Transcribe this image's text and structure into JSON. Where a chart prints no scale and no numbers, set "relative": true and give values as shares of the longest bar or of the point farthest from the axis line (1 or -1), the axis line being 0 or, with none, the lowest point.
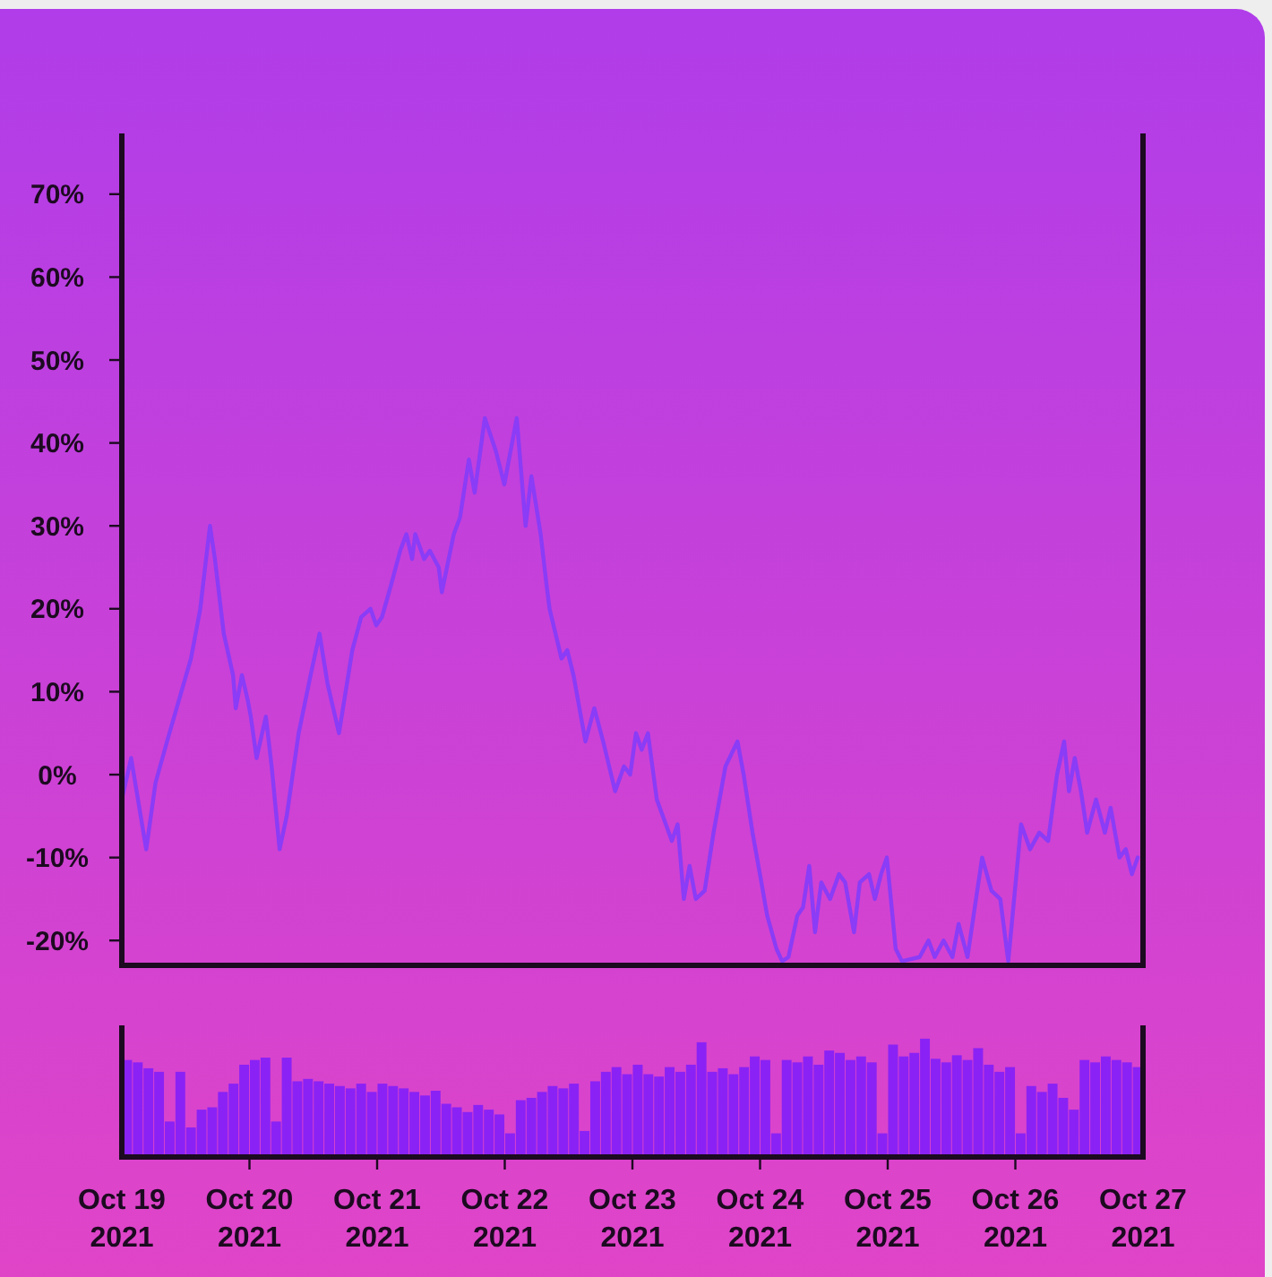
{
  "chart_data": [
    {
      "type": "line",
      "color": "#8a3cf6",
      "x": [
        "2021-10-19T00:00",
        "2021-10-19T01:45",
        "2021-10-19T04:35",
        "2021-10-19T06:20",
        "2021-10-19T08:30",
        "2021-10-19T10:45",
        "2021-10-19T13:00",
        "2021-10-19T14:45",
        "2021-10-19T15:50",
        "2021-10-19T16:35",
        "2021-10-19T17:30",
        "2021-10-19T19:10",
        "2021-10-19T20:55",
        "2021-10-19T21:25",
        "2021-10-19T22:35",
        "2021-10-19T23:40",
        "2021-10-20T00:15",
        "2021-10-20T01:20",
        "2021-10-20T03:05",
        "2021-10-20T04:10",
        "2021-10-20T05:40",
        "2021-10-20T07:00",
        "2021-10-20T09:15",
        "2021-10-20T11:30",
        "2021-10-20T13:10",
        "2021-10-20T14:40",
        "2021-10-20T16:50",
        "2021-10-20T19:20",
        "2021-10-20T21:00",
        "2021-10-20T22:45",
        "2021-10-20T23:50",
        "2021-10-21T00:55",
        "2021-10-21T02:40",
        "2021-10-21T04:20",
        "2021-10-21T05:30",
        "2021-10-21T06:35",
        "2021-10-21T07:10",
        "2021-10-21T08:50",
        "2021-10-21T09:55",
        "2021-10-21T11:35",
        "2021-10-21T12:10",
        "2021-10-21T14:25",
        "2021-10-21T15:35",
        "2021-10-21T17:15",
        "2021-10-21T18:20",
        "2021-10-21T20:15",
        "2021-10-21T22:20",
        "2021-10-21T23:55",
        "2021-10-22T02:15",
        "2021-10-22T03:55",
        "2021-10-22T05:00",
        "2021-10-22T06:45",
        "2021-10-22T07:50",
        "2021-10-22T08:25",
        "2021-10-22T10:40",
        "2021-10-22T11:45",
        "2021-10-22T12:55",
        "2021-10-22T15:10",
        "2021-10-22T16:50",
        "2021-10-22T18:30",
        "2021-10-22T20:45",
        "2021-10-22T22:25",
        "2021-10-22T23:35",
        "2021-10-23T00:40",
        "2021-10-23T01:45",
        "2021-10-23T02:55",
        "2021-10-23T04:35",
        "2021-10-23T07:25",
        "2021-10-23T08:30",
        "2021-10-23T09:40",
        "2021-10-23T10:45",
        "2021-10-23T11:55",
        "2021-10-23T13:35",
        "2021-10-23T15:15",
        "2021-10-23T17:30",
        "2021-10-23T19:45",
        "2021-10-23T20:55",
        "2021-10-23T22:35",
        "2021-10-24T00:15",
        "2021-10-24T01:20",
        "2021-10-24T03:05",
        "2021-10-24T04:10",
        "2021-10-24T05:20",
        "2021-10-24T07:00",
        "2021-10-24T08:05",
        "2021-10-24T09:15",
        "2021-10-24T10:20",
        "2021-10-24T11:30",
        "2021-10-24T13:10",
        "2021-10-24T14:50",
        "2021-10-24T16:00",
        "2021-10-24T17:40",
        "2021-10-24T18:45",
        "2021-10-24T20:30",
        "2021-10-24T21:35",
        "2021-10-24T22:45",
        "2021-10-24T23:50",
        "2021-10-25T01:30",
        "2021-10-25T02:40",
        "2021-10-25T06:00",
        "2021-10-25T07:40",
        "2021-10-25T08:50",
        "2021-10-25T10:30",
        "2021-10-25T12:10",
        "2021-10-25T13:20",
        "2021-10-25T15:00",
        "2021-10-25T17:45",
        "2021-10-25T19:30",
        "2021-10-25T21:10",
        "2021-10-25T22:40",
        "2021-10-26T01:05",
        "2021-10-26T02:45",
        "2021-10-26T04:30",
        "2021-10-26T06:10",
        "2021-10-26T07:50",
        "2021-10-26T09:10",
        "2021-10-26T10:05",
        "2021-10-26T11:10",
        "2021-10-26T12:20",
        "2021-10-26T13:30",
        "2021-10-26T15:10",
        "2021-10-26T16:50",
        "2021-10-26T17:55",
        "2021-10-26T19:35",
        "2021-10-26T20:45",
        "2021-10-26T21:55",
        "2021-10-26T23:00"
      ],
      "values": [
        -3,
        2,
        -9,
        -1,
        4,
        9,
        14,
        20,
        26,
        30,
        26,
        17,
        12,
        8,
        12,
        9,
        7,
        2,
        7,
        1,
        -9,
        -5,
        5,
        12,
        17,
        11,
        5,
        15,
        19,
        20,
        18,
        19,
        23,
        27,
        29,
        26,
        29,
        26,
        27,
        25,
        22,
        29,
        31,
        38,
        34,
        43,
        39,
        35,
        43,
        30,
        36,
        29,
        23,
        20,
        14,
        15,
        12,
        4,
        8,
        4,
        -2,
        1,
        0,
        5,
        3,
        5,
        -3,
        -8,
        -6,
        -15,
        -11,
        -15,
        -14,
        -7,
        1,
        4,
        0,
        -7,
        -13,
        -17,
        -21,
        -22.5,
        -22,
        -17,
        -16,
        -11,
        -19,
        -13,
        -15,
        -12,
        -13,
        -19,
        -13,
        -12,
        -15,
        -12,
        -10,
        -21,
        -22.5,
        -22,
        -20,
        -22,
        -20,
        -22,
        -18,
        -22,
        -10,
        -14,
        -15,
        -22.5,
        -6,
        -9,
        -7,
        -8,
        0,
        4,
        -2,
        2,
        -2,
        -7,
        -3,
        -7,
        -4,
        -10,
        -9,
        -12,
        -10
      ],
      "xlim": [
        "2021-10-19",
        "2021-10-27"
      ],
      "ylim": [
        -23,
        77
      ],
      "yticks": [
        {
          "value": -20,
          "label": "-20%"
        },
        {
          "value": -10,
          "label": "-10%"
        },
        {
          "value": 0,
          "label": "0%"
        },
        {
          "value": 10,
          "label": "10%"
        },
        {
          "value": 20,
          "label": "20%"
        },
        {
          "value": 30,
          "label": "30%"
        },
        {
          "value": 40,
          "label": "40%"
        },
        {
          "value": 50,
          "label": "50%"
        },
        {
          "value": 60,
          "label": "60%"
        },
        {
          "value": 70,
          "label": "70%"
        }
      ],
      "tick_labels": "y"
    },
    {
      "type": "bar",
      "relative": true,
      "color": "#8a22f5",
      "x": [
        "2021-10-19T01:00",
        "2021-10-19T03:00",
        "2021-10-19T05:00",
        "2021-10-19T07:00",
        "2021-10-19T09:00",
        "2021-10-19T11:00",
        "2021-10-19T13:00",
        "2021-10-19T15:00",
        "2021-10-19T17:00",
        "2021-10-19T19:00",
        "2021-10-19T21:00",
        "2021-10-19T23:00",
        "2021-10-20T01:00",
        "2021-10-20T03:00",
        "2021-10-20T05:00",
        "2021-10-20T07:00",
        "2021-10-20T09:00",
        "2021-10-20T11:00",
        "2021-10-20T13:00",
        "2021-10-20T15:00",
        "2021-10-20T17:00",
        "2021-10-20T19:00",
        "2021-10-20T21:00",
        "2021-10-20T23:00",
        "2021-10-21T01:00",
        "2021-10-21T03:00",
        "2021-10-21T05:00",
        "2021-10-21T07:00",
        "2021-10-21T09:00",
        "2021-10-21T11:00",
        "2021-10-21T13:00",
        "2021-10-21T15:00",
        "2021-10-21T17:00",
        "2021-10-21T19:00",
        "2021-10-21T21:00",
        "2021-10-21T23:00",
        "2021-10-22T01:00",
        "2021-10-22T03:00",
        "2021-10-22T05:00",
        "2021-10-22T07:00",
        "2021-10-22T09:00",
        "2021-10-22T11:00",
        "2021-10-22T13:00",
        "2021-10-22T15:00",
        "2021-10-22T17:00",
        "2021-10-22T19:00",
        "2021-10-22T21:00",
        "2021-10-22T23:00",
        "2021-10-23T01:00",
        "2021-10-23T03:00",
        "2021-10-23T05:00",
        "2021-10-23T07:00",
        "2021-10-23T09:00",
        "2021-10-23T11:00",
        "2021-10-23T13:00",
        "2021-10-23T15:00",
        "2021-10-23T17:00",
        "2021-10-23T19:00",
        "2021-10-23T21:00",
        "2021-10-23T23:00",
        "2021-10-24T01:00",
        "2021-10-24T03:00",
        "2021-10-24T05:00",
        "2021-10-24T07:00",
        "2021-10-24T09:00",
        "2021-10-24T11:00",
        "2021-10-24T13:00",
        "2021-10-24T15:00",
        "2021-10-24T17:00",
        "2021-10-24T19:00",
        "2021-10-24T21:00",
        "2021-10-24T23:00",
        "2021-10-25T01:00",
        "2021-10-25T03:00",
        "2021-10-25T05:00",
        "2021-10-25T07:00",
        "2021-10-25T09:00",
        "2021-10-25T11:00",
        "2021-10-25T13:00",
        "2021-10-25T15:00",
        "2021-10-25T17:00",
        "2021-10-25T19:00",
        "2021-10-25T21:00",
        "2021-10-25T23:00",
        "2021-10-26T01:00",
        "2021-10-26T03:00",
        "2021-10-26T05:00",
        "2021-10-26T07:00",
        "2021-10-26T09:00",
        "2021-10-26T11:00",
        "2021-10-26T13:00",
        "2021-10-26T15:00",
        "2021-10-26T17:00",
        "2021-10-26T19:00",
        "2021-10-26T21:00",
        "2021-10-26T23:00"
      ],
      "values": [
        0.82,
        0.8,
        0.75,
        0.72,
        0.3,
        0.72,
        0.25,
        0.4,
        0.42,
        0.55,
        0.62,
        0.78,
        0.82,
        0.84,
        0.3,
        0.84,
        0.64,
        0.66,
        0.64,
        0.62,
        0.6,
        0.58,
        0.62,
        0.55,
        0.62,
        0.6,
        0.58,
        0.55,
        0.52,
        0.56,
        0.45,
        0.42,
        0.38,
        0.44,
        0.4,
        0.36,
        0.2,
        0.48,
        0.5,
        0.55,
        0.6,
        0.58,
        0.62,
        0.22,
        0.64,
        0.72,
        0.76,
        0.7,
        0.78,
        0.7,
        0.68,
        0.76,
        0.72,
        0.78,
        0.97,
        0.72,
        0.75,
        0.7,
        0.76,
        0.85,
        0.82,
        0.2,
        0.82,
        0.8,
        0.85,
        0.78,
        0.9,
        0.88,
        0.82,
        0.85,
        0.8,
        0.2,
        0.95,
        0.85,
        0.88,
        1.0,
        0.83,
        0.8,
        0.86,
        0.82,
        0.92,
        0.78,
        0.72,
        0.76,
        0.2,
        0.6,
        0.55,
        0.62,
        0.5,
        0.4,
        0.82,
        0.8,
        0.85,
        0.82,
        0.8,
        0.76
      ],
      "xlim": [
        "2021-10-19",
        "2021-10-27"
      ],
      "xticks": [
        {
          "value": "2021-10-19",
          "label": "Oct 19\n2021"
        },
        {
          "value": "2021-10-20",
          "label": "Oct 20\n2021"
        },
        {
          "value": "2021-10-21",
          "label": "Oct 21\n2021"
        },
        {
          "value": "2021-10-22",
          "label": "Oct 22\n2021"
        },
        {
          "value": "2021-10-23",
          "label": "Oct 23\n2021"
        },
        {
          "value": "2021-10-24",
          "label": "Oct 24\n2021"
        },
        {
          "value": "2021-10-25",
          "label": "Oct 25\n2021"
        },
        {
          "value": "2021-10-26",
          "label": "Oct 26\n2021"
        },
        {
          "value": "2021-10-27",
          "label": "Oct 27\n2021"
        }
      ],
      "tick_labels": "x"
    }
  ]
}
